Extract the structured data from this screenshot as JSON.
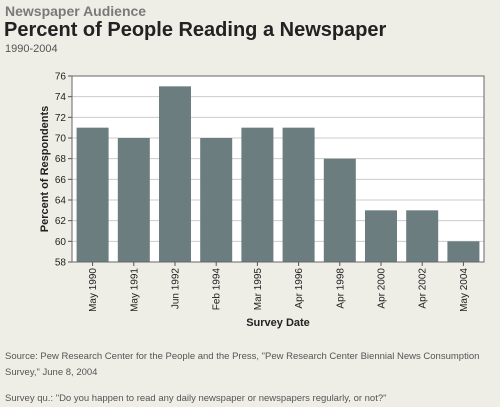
{
  "header": {
    "supertitle": "Newspaper Audience",
    "title": "Percent of People Reading a Newspaper",
    "date_range": "1990-2004"
  },
  "footer": {
    "source": "Source: Pew Research Center for the People and the Press, \"Pew Research Center Biennial News Consumption Survey,\" June 8, 2004",
    "question": "Survey qu.: \"Do you happen to read any daily newspaper or newspapers regularly, or not?\""
  },
  "chart_data": {
    "type": "bar",
    "title": "Percent of People Reading a Newspaper",
    "subtitle": "1990-2004",
    "xlabel": "Survey Date",
    "ylabel": "Percent of Respondents",
    "categories": [
      "May 1990",
      "May 1991",
      "Jun 1992",
      "Feb 1994",
      "Mar 1995",
      "Apr 1996",
      "Apr 1998",
      "Apr 2000",
      "Apr 2002",
      "May 2004"
    ],
    "values": [
      71,
      70,
      75,
      70,
      71,
      71,
      68,
      63,
      63,
      60
    ],
    "ylim": [
      58,
      76
    ],
    "yticks": [
      58,
      60,
      62,
      64,
      66,
      68,
      70,
      72,
      74,
      76
    ],
    "grid": true,
    "legend": "none",
    "bar_color": "#6b7d7e",
    "plot_background": "#ffffff",
    "grid_color": "#cccccc"
  }
}
